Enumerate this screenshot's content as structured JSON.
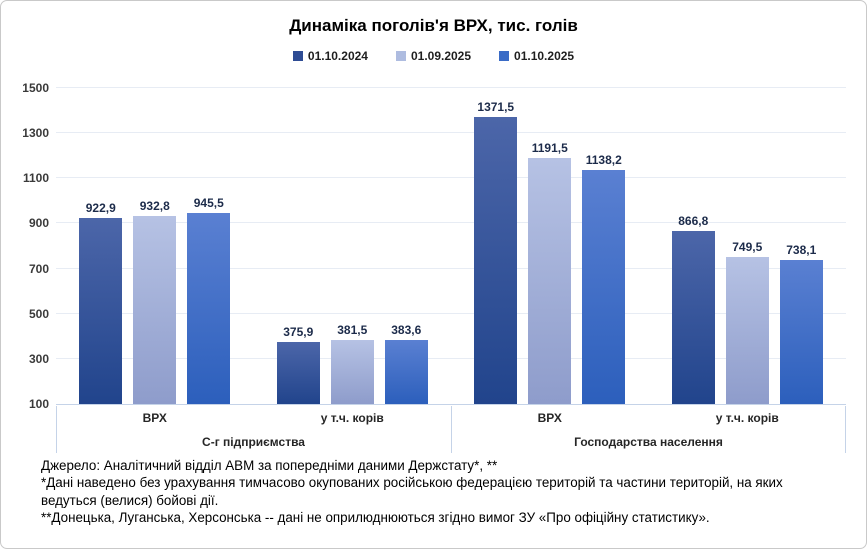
{
  "title": "Динаміка поголів'я ВРХ, тис. голів",
  "chart_data": {
    "type": "bar",
    "title": "Динаміка поголів'я ВРХ, тис. голів",
    "categories": [
      "ВРХ",
      "у т.ч. корів",
      "ВРХ",
      "у т.ч. корів"
    ],
    "group_labels": [
      "С-г підприємства",
      "Господарства населення"
    ],
    "series": [
      {
        "name": "01.10.2024",
        "color": "#2E4C94",
        "gradient": [
          "#4C66A9",
          "#21448C"
        ],
        "values": [
          922.9,
          375.9,
          1371.5,
          866.8
        ]
      },
      {
        "name": "01.09.2025",
        "color": "#AEBCE0",
        "gradient": [
          "#B6C2E4",
          "#8E9CCB"
        ],
        "values": [
          932.8,
          381.5,
          1191.5,
          749.5
        ]
      },
      {
        "name": "01.10.2025",
        "color": "#3A6BC6",
        "gradient": [
          "#5A80D2",
          "#2C5FBC"
        ],
        "values": [
          945.5,
          383.6,
          1138.2,
          738.1
        ]
      }
    ],
    "ylim": [
      100,
      1500
    ],
    "yticks": [
      100,
      300,
      500,
      700,
      900,
      1100,
      1300,
      1500
    ],
    "grid": true,
    "legend_position": "top",
    "ylabel": "",
    "xlabel": ""
  },
  "footer": {
    "lines": [
      "Джерело: Аналітичний відділ АВМ за попередніми даними Держстату*, **",
      "*Дані наведено без урахування тимчасово окупованих російською федерацією територій та частини територій, на яких ведуться (велися) бойові дії.",
      "**Донецька, Луганська, Херсонська -- дані не оприлюднюються згідно вимог ЗУ «Про офіційну статистику»."
    ]
  }
}
